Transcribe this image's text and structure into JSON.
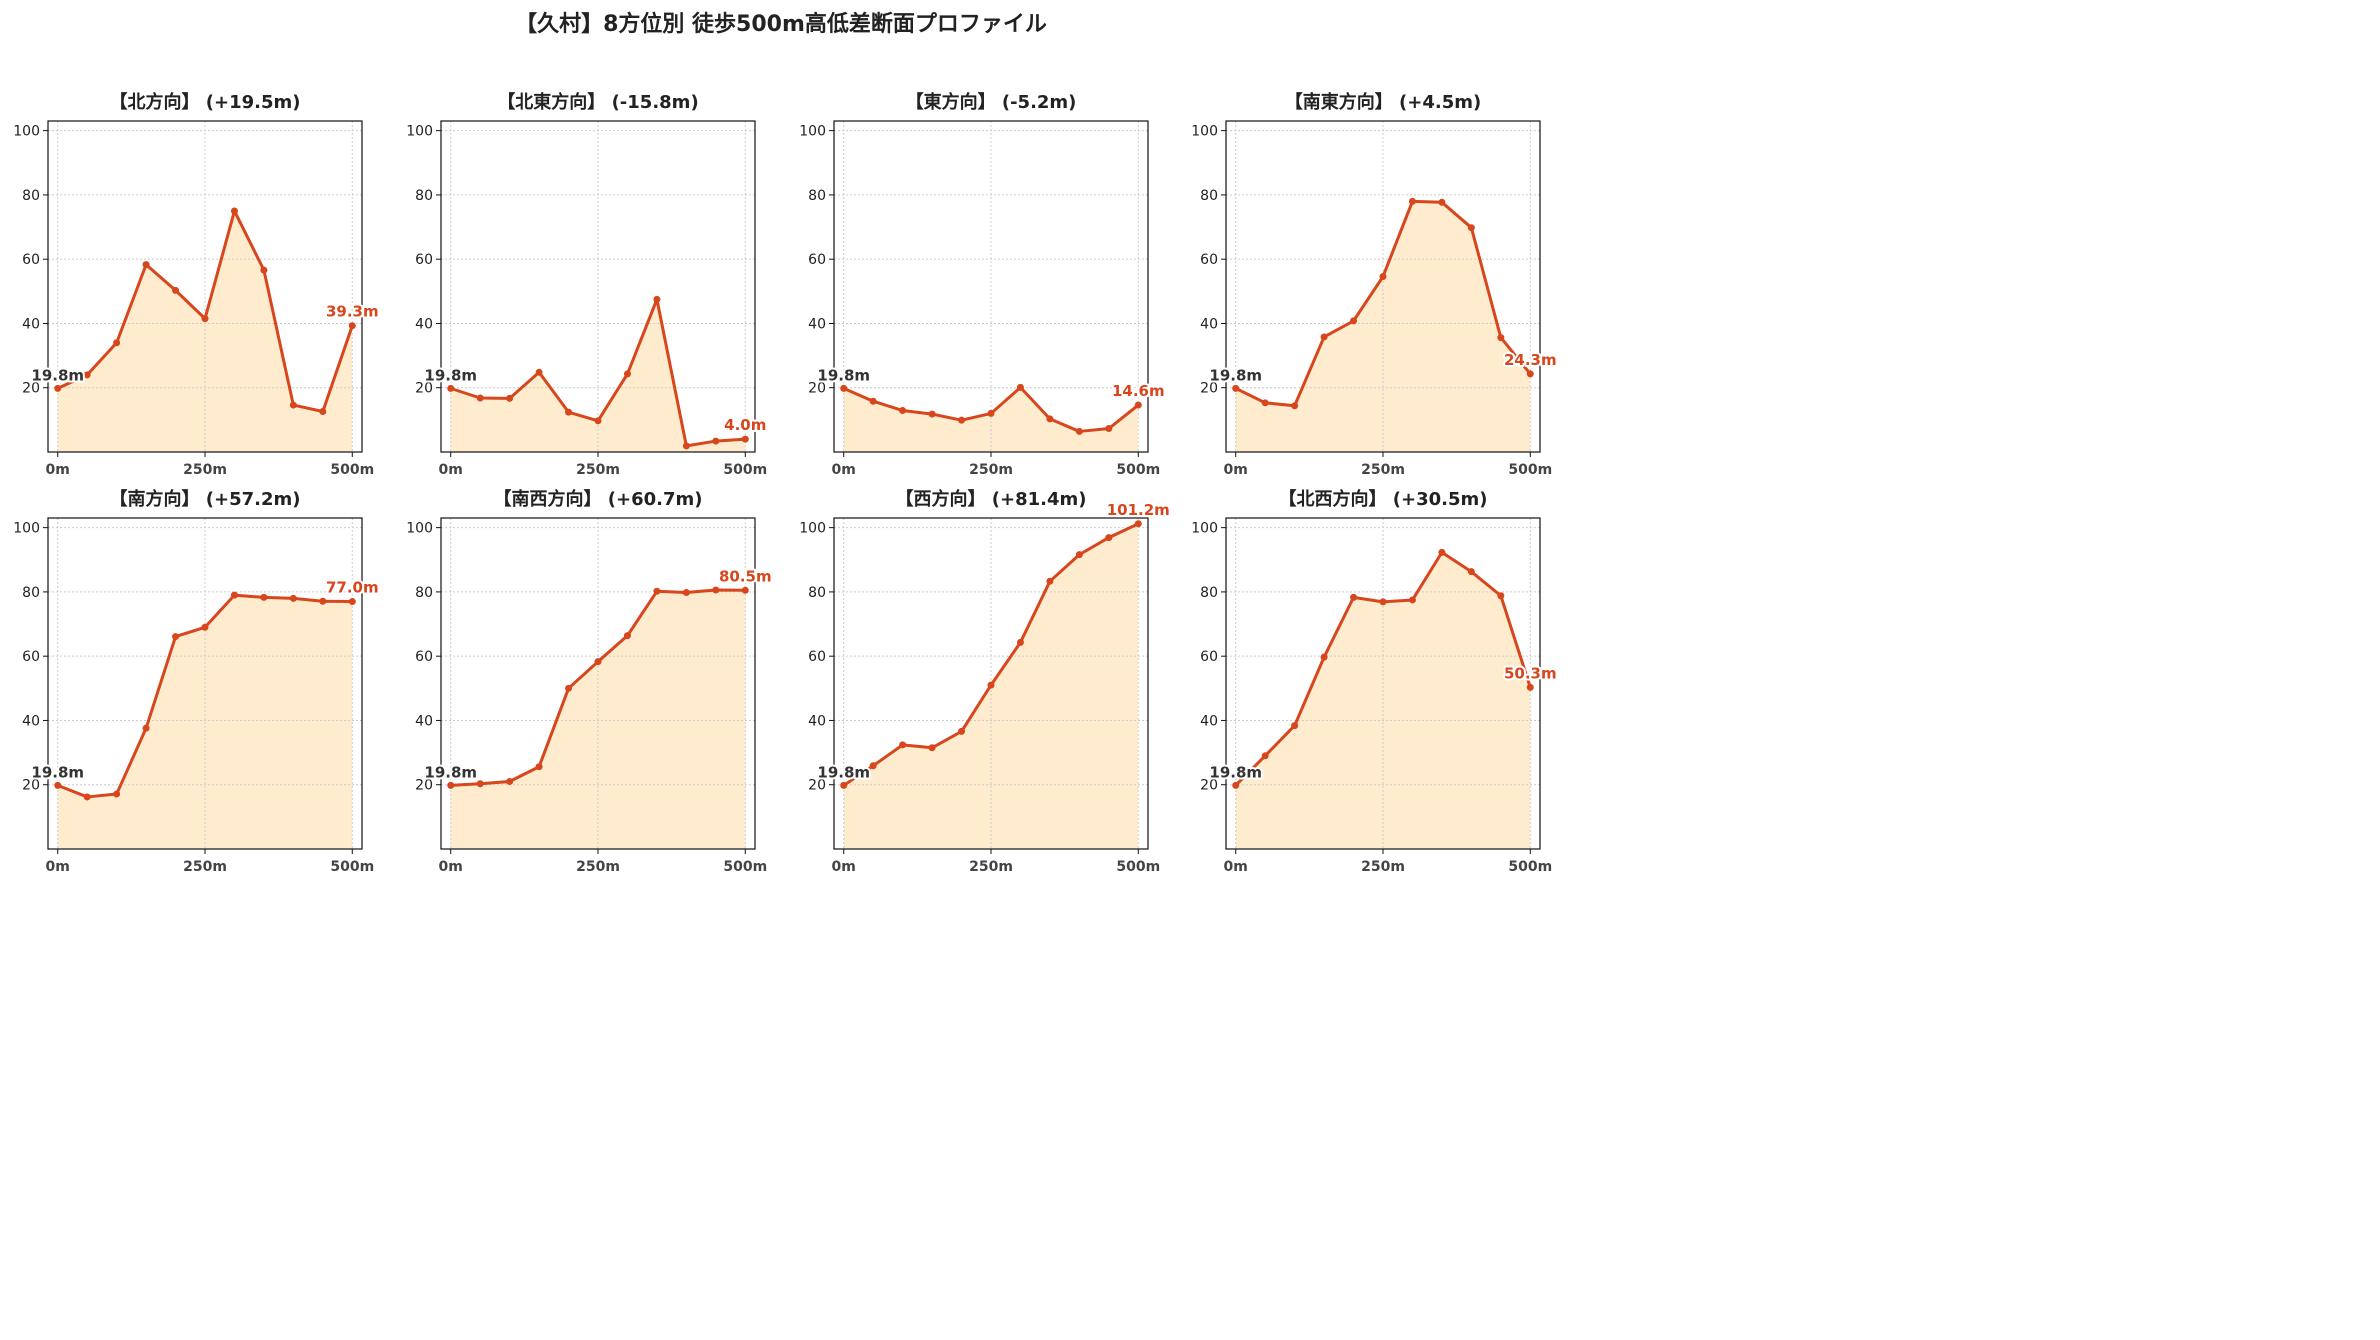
{
  "title": "【久村】8方位別 徒歩500m高低差断面プロファイル",
  "colors": {
    "line": "#d7461c",
    "fill": "#ffeccf",
    "start_label": "#333333",
    "end_label": "#d7461c",
    "grid": "#cccccc"
  },
  "chart_data": [
    {
      "type": "area",
      "title": "【北方向】 (+19.5m)",
      "x": [
        0,
        50,
        100,
        150,
        200,
        250,
        300,
        350,
        400,
        450,
        500
      ],
      "y": [
        19.8,
        24.0,
        34.0,
        58.3,
        50.3,
        41.5,
        75.0,
        56.6,
        14.6,
        12.6,
        39.3
      ],
      "start_label": "19.8m",
      "end_label": "39.3m",
      "ylim": [
        0,
        103
      ],
      "xticks": [
        "0m",
        "250m",
        "500m"
      ],
      "yticks": [
        20,
        40,
        60,
        80,
        100
      ],
      "grid": true
    },
    {
      "type": "area",
      "title": "【北東方向】 (-15.8m)",
      "x": [
        0,
        50,
        100,
        150,
        200,
        250,
        300,
        350,
        400,
        450,
        500
      ],
      "y": [
        19.8,
        16.8,
        16.7,
        24.8,
        12.4,
        9.7,
        24.3,
        47.5,
        1.9,
        3.4,
        4.0
      ],
      "start_label": "19.8m",
      "end_label": "4.0m",
      "ylim": [
        0,
        103
      ],
      "xticks": [
        "0m",
        "250m",
        "500m"
      ],
      "yticks": [
        20,
        40,
        60,
        80,
        100
      ],
      "grid": true
    },
    {
      "type": "area",
      "title": "【東方向】 (-5.2m)",
      "x": [
        0,
        50,
        100,
        150,
        200,
        250,
        300,
        350,
        400,
        450,
        500
      ],
      "y": [
        19.8,
        15.8,
        12.9,
        11.8,
        9.9,
        12.0,
        20.1,
        10.3,
        6.4,
        7.3,
        14.6
      ],
      "start_label": "19.8m",
      "end_label": "14.6m",
      "ylim": [
        0,
        103
      ],
      "xticks": [
        "0m",
        "250m",
        "500m"
      ],
      "yticks": [
        20,
        40,
        60,
        80,
        100
      ],
      "grid": true
    },
    {
      "type": "area",
      "title": "【南東方向】 (+4.5m)",
      "x": [
        0,
        50,
        100,
        150,
        200,
        250,
        300,
        350,
        400,
        450,
        500
      ],
      "y": [
        19.8,
        15.3,
        14.4,
        35.8,
        40.8,
        54.6,
        78.0,
        77.7,
        69.8,
        35.6,
        24.3
      ],
      "start_label": "19.8m",
      "end_label": "24.3m",
      "ylim": [
        0,
        103
      ],
      "xticks": [
        "0m",
        "250m",
        "500m"
      ],
      "yticks": [
        20,
        40,
        60,
        80,
        100
      ],
      "grid": true
    },
    {
      "type": "area",
      "title": "【南方向】 (+57.2m)",
      "x": [
        0,
        50,
        100,
        150,
        200,
        250,
        300,
        350,
        400,
        450,
        500
      ],
      "y": [
        19.8,
        16.2,
        17.1,
        37.6,
        66.1,
        69.0,
        79.0,
        78.3,
        78.0,
        77.1,
        77.0
      ],
      "start_label": "19.8m",
      "end_label": "77.0m",
      "ylim": [
        0,
        103
      ],
      "xticks": [
        "0m",
        "250m",
        "500m"
      ],
      "yticks": [
        20,
        40,
        60,
        80,
        100
      ],
      "grid": true
    },
    {
      "type": "area",
      "title": "【南西方向】 (+60.7m)",
      "x": [
        0,
        50,
        100,
        150,
        200,
        250,
        300,
        350,
        400,
        450,
        500
      ],
      "y": [
        19.8,
        20.3,
        21.0,
        25.6,
        50.0,
        58.3,
        66.4,
        80.2,
        79.8,
        80.6,
        80.5
      ],
      "start_label": "19.8m",
      "end_label": "80.5m",
      "ylim": [
        0,
        103
      ],
      "xticks": [
        "0m",
        "250m",
        "500m"
      ],
      "yticks": [
        20,
        40,
        60,
        80,
        100
      ],
      "grid": true
    },
    {
      "type": "area",
      "title": "【西方向】 (+81.4m)",
      "x": [
        0,
        50,
        100,
        150,
        200,
        250,
        300,
        350,
        400,
        450,
        500
      ],
      "y": [
        19.8,
        25.9,
        32.4,
        31.5,
        36.6,
        51.0,
        64.3,
        83.3,
        91.6,
        96.9,
        101.2
      ],
      "start_label": "19.8m",
      "end_label": "101.2m",
      "ylim": [
        0,
        103
      ],
      "xticks": [
        "0m",
        "250m",
        "500m"
      ],
      "yticks": [
        20,
        40,
        60,
        80,
        100
      ],
      "grid": true
    },
    {
      "type": "area",
      "title": "【北西方向】 (+30.5m)",
      "x": [
        0,
        50,
        100,
        150,
        200,
        250,
        300,
        350,
        400,
        450,
        500
      ],
      "y": [
        19.8,
        29.0,
        38.4,
        59.7,
        78.3,
        76.9,
        77.5,
        92.3,
        86.3,
        78.8,
        50.3
      ],
      "start_label": "19.8m",
      "end_label": "50.3m",
      "ylim": [
        0,
        103
      ],
      "xticks": [
        "0m",
        "250m",
        "500m"
      ],
      "yticks": [
        20,
        40,
        60,
        80,
        100
      ],
      "grid": true
    }
  ]
}
